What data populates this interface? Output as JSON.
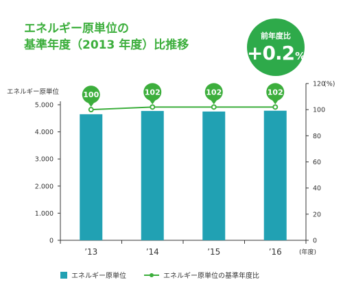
{
  "title": {
    "line1": "エネルギー原単位の",
    "line2": "基準年度（2013 年度）比推移"
  },
  "badge": {
    "label": "前年度比",
    "value": "+0.2",
    "unit": "%",
    "color": "#2eaa4a"
  },
  "chart_data": {
    "type": "bar",
    "categories": [
      "’13",
      "’14",
      "’15",
      "’16"
    ],
    "series": [
      {
        "name": "エネルギー原単位",
        "type": "bar",
        "axis": "left",
        "color": "#21a1b3",
        "values": [
          4650,
          4770,
          4750,
          4780
        ]
      },
      {
        "name": "エネルギー原単位の基準年度比",
        "type": "line",
        "axis": "right",
        "color": "#3cae3c",
        "values": [
          100,
          102,
          102,
          102
        ],
        "labels": [
          "100",
          "102",
          "102",
          "102"
        ]
      }
    ],
    "y_left": {
      "label": "エネルギー原単位",
      "range": [
        0,
        5000
      ],
      "ticks": [
        "0",
        "1.000",
        "2.000",
        "3.000",
        "4.000",
        "5.000"
      ],
      "tick_values": [
        0,
        1000,
        2000,
        3000,
        4000,
        5000
      ]
    },
    "y_right": {
      "label": "(%)",
      "range": [
        0,
        120
      ],
      "ticks": [
        "0",
        "20",
        "40",
        "60",
        "80",
        "100",
        "120"
      ],
      "tick_values": [
        0,
        20,
        40,
        60,
        80,
        100,
        120
      ]
    },
    "x_unit": "(年度)",
    "grid": false,
    "legend_position": "bottom"
  }
}
